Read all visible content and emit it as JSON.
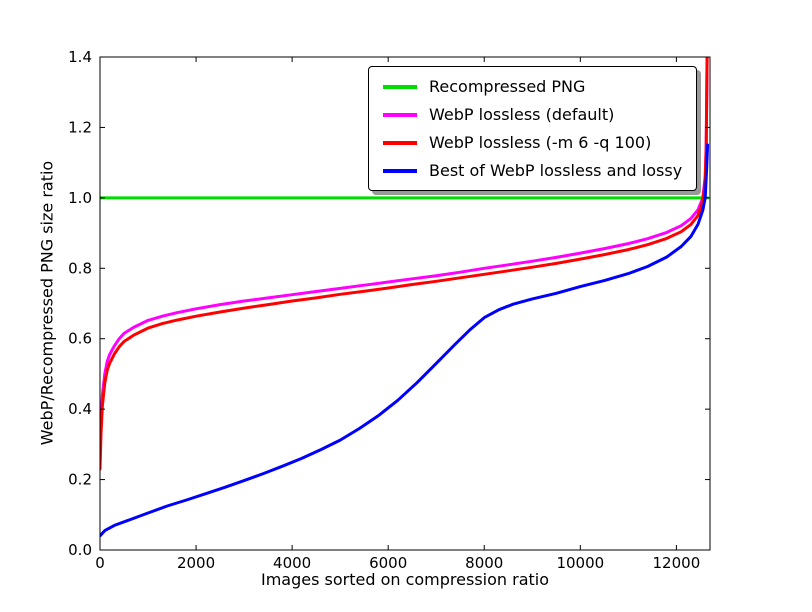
{
  "chart_data": {
    "type": "line",
    "title": "",
    "xlabel": "Images sorted on compression ratio",
    "ylabel": "WebP/Recompressed PNG size ratio",
    "xlim": [
      0,
      12700
    ],
    "ylim": [
      0.0,
      1.4
    ],
    "xticks": [
      0,
      2000,
      4000,
      6000,
      8000,
      10000,
      12000
    ],
    "yticks": [
      0.0,
      0.2,
      0.4,
      0.6,
      0.8,
      1.0,
      1.2,
      1.4
    ],
    "grid": false,
    "legend_position": "upper center",
    "axis_color": "#000000",
    "background": "#ffffff",
    "series": [
      {
        "name": "Recompressed PNG",
        "color": "#00dd00",
        "points": [
          [
            0,
            1.0
          ],
          [
            12650,
            1.0
          ]
        ]
      },
      {
        "name": "WebP lossless (default)",
        "color": "#ff00ff",
        "points": [
          [
            0,
            0.27
          ],
          [
            20,
            0.36
          ],
          [
            50,
            0.44
          ],
          [
            100,
            0.5
          ],
          [
            150,
            0.535
          ],
          [
            200,
            0.555
          ],
          [
            300,
            0.58
          ],
          [
            400,
            0.6
          ],
          [
            500,
            0.615
          ],
          [
            700,
            0.632
          ],
          [
            1000,
            0.652
          ],
          [
            1300,
            0.664
          ],
          [
            1600,
            0.674
          ],
          [
            2000,
            0.685
          ],
          [
            2500,
            0.697
          ],
          [
            3000,
            0.707
          ],
          [
            3500,
            0.716
          ],
          [
            4000,
            0.725
          ],
          [
            4500,
            0.734
          ],
          [
            5000,
            0.743
          ],
          [
            5500,
            0.752
          ],
          [
            6000,
            0.761
          ],
          [
            6500,
            0.77
          ],
          [
            7000,
            0.779
          ],
          [
            7500,
            0.789
          ],
          [
            8000,
            0.8
          ],
          [
            8500,
            0.81
          ],
          [
            9000,
            0.82
          ],
          [
            9500,
            0.831
          ],
          [
            10000,
            0.843
          ],
          [
            10500,
            0.856
          ],
          [
            11000,
            0.87
          ],
          [
            11400,
            0.884
          ],
          [
            11800,
            0.902
          ],
          [
            12100,
            0.921
          ],
          [
            12300,
            0.941
          ],
          [
            12450,
            0.966
          ],
          [
            12550,
            1.0
          ],
          [
            12600,
            1.06
          ],
          [
            12620,
            1.15
          ],
          [
            12640,
            1.4
          ]
        ]
      },
      {
        "name": "WebP lossless (-m 6 -q 100)",
        "color": "#ff0000",
        "points": [
          [
            0,
            0.23
          ],
          [
            20,
            0.33
          ],
          [
            50,
            0.41
          ],
          [
            100,
            0.475
          ],
          [
            150,
            0.51
          ],
          [
            200,
            0.53
          ],
          [
            300,
            0.557
          ],
          [
            400,
            0.577
          ],
          [
            500,
            0.592
          ],
          [
            700,
            0.61
          ],
          [
            1000,
            0.63
          ],
          [
            1300,
            0.643
          ],
          [
            1600,
            0.653
          ],
          [
            2000,
            0.664
          ],
          [
            2500,
            0.676
          ],
          [
            3000,
            0.687
          ],
          [
            3500,
            0.697
          ],
          [
            4000,
            0.707
          ],
          [
            4500,
            0.716
          ],
          [
            5000,
            0.726
          ],
          [
            5500,
            0.735
          ],
          [
            6000,
            0.744
          ],
          [
            6500,
            0.754
          ],
          [
            7000,
            0.763
          ],
          [
            7500,
            0.773
          ],
          [
            8000,
            0.783
          ],
          [
            8500,
            0.793
          ],
          [
            9000,
            0.803
          ],
          [
            9500,
            0.814
          ],
          [
            10000,
            0.826
          ],
          [
            10500,
            0.839
          ],
          [
            11000,
            0.853
          ],
          [
            11400,
            0.867
          ],
          [
            11800,
            0.885
          ],
          [
            12100,
            0.904
          ],
          [
            12300,
            0.924
          ],
          [
            12450,
            0.95
          ],
          [
            12550,
            0.99
          ],
          [
            12600,
            1.05
          ],
          [
            12620,
            1.14
          ],
          [
            12640,
            1.4
          ]
        ]
      },
      {
        "name": "Best of WebP lossless and lossy",
        "color": "#0000ff",
        "points": [
          [
            0,
            0.04
          ],
          [
            100,
            0.055
          ],
          [
            300,
            0.07
          ],
          [
            600,
            0.085
          ],
          [
            1000,
            0.105
          ],
          [
            1400,
            0.125
          ],
          [
            1800,
            0.142
          ],
          [
            2200,
            0.16
          ],
          [
            2600,
            0.178
          ],
          [
            3000,
            0.197
          ],
          [
            3400,
            0.217
          ],
          [
            3800,
            0.238
          ],
          [
            4200,
            0.26
          ],
          [
            4600,
            0.285
          ],
          [
            5000,
            0.312
          ],
          [
            5400,
            0.345
          ],
          [
            5800,
            0.382
          ],
          [
            6200,
            0.425
          ],
          [
            6600,
            0.475
          ],
          [
            7000,
            0.53
          ],
          [
            7400,
            0.585
          ],
          [
            7700,
            0.625
          ],
          [
            8000,
            0.66
          ],
          [
            8300,
            0.682
          ],
          [
            8600,
            0.698
          ],
          [
            9000,
            0.713
          ],
          [
            9500,
            0.729
          ],
          [
            10000,
            0.748
          ],
          [
            10500,
            0.765
          ],
          [
            11000,
            0.785
          ],
          [
            11400,
            0.805
          ],
          [
            11800,
            0.832
          ],
          [
            12100,
            0.862
          ],
          [
            12300,
            0.89
          ],
          [
            12450,
            0.925
          ],
          [
            12550,
            0.965
          ],
          [
            12600,
            1.0
          ],
          [
            12630,
            1.08
          ],
          [
            12650,
            1.15
          ]
        ]
      }
    ]
  }
}
